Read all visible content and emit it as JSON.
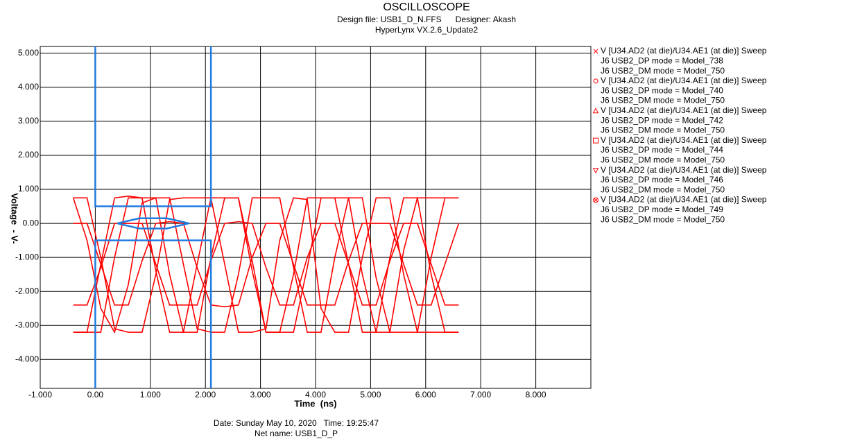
{
  "chart_data": {
    "type": "line",
    "title": "OSCILLOSCOPE",
    "subtitle": [
      "Design file: USB1_D_N.FFS      Designer: Akash",
      "HyperLynx VX.2.6_Update2"
    ],
    "footer": [
      "Date: Sunday May 10, 2020   Time: 19:25:47",
      "Net name: USB1_D_P"
    ],
    "xlabel": "Time  (ns)",
    "ylabel": "Voltage  - V-",
    "xlim": [
      -1,
      9
    ],
    "ylim": [
      -4.85,
      5.2
    ],
    "xticks": [
      {
        "value": -1,
        "label": "-1.000"
      },
      {
        "value": 0,
        "label": "0.00"
      },
      {
        "value": 1,
        "label": "1.000"
      },
      {
        "value": 2,
        "label": "2.000"
      },
      {
        "value": 3,
        "label": "3.000"
      },
      {
        "value": 4,
        "label": "4.000"
      },
      {
        "value": 5,
        "label": "5.000"
      },
      {
        "value": 6,
        "label": "6.000"
      },
      {
        "value": 7,
        "label": "7.000"
      },
      {
        "value": 8,
        "label": "8.000"
      }
    ],
    "yticks": [
      {
        "value": 5,
        "label": "5.000"
      },
      {
        "value": 4,
        "label": "4.000"
      },
      {
        "value": 3,
        "label": "3.000"
      },
      {
        "value": 2,
        "label": "2.000"
      },
      {
        "value": 1,
        "label": "1.000"
      },
      {
        "value": 0,
        "label": "0.00"
      },
      {
        "value": -1,
        "label": "-1.000"
      },
      {
        "value": -2,
        "label": "-2.000"
      },
      {
        "value": -3,
        "label": "-3.000"
      },
      {
        "value": -4,
        "label": "-4.000"
      }
    ],
    "grid": true,
    "x": [
      -0.4,
      -0.15,
      0.1,
      0.35,
      0.6,
      0.85,
      1.1,
      1.35,
      1.6,
      1.85,
      2.1,
      2.35,
      2.6,
      2.85,
      3.1,
      3.35,
      3.6,
      3.85,
      4.1,
      4.35,
      4.6,
      4.85,
      5.1,
      5.35,
      5.6,
      5.85,
      6.1,
      6.35,
      6.6
    ],
    "series": [
      {
        "name": "V [U34.AD2 (at die)/U34.AE1 (at die)] Sweep",
        "details": [
          "J6 USB2_DP mode = Model_738",
          "J6 USB2_DM mode = Model_750"
        ],
        "marker": "x",
        "color": "#ff0000",
        "values": [
          0.75,
          0.75,
          -1.0,
          -3.1,
          -3.2,
          -3.2,
          -1.5,
          0.7,
          0.75,
          0.75,
          0.75,
          -1.2,
          -3.2,
          -3.2,
          -3.1,
          -0.5,
          0.75,
          0.7,
          -2.5,
          -3.2,
          -3.2,
          -1.0,
          0.75,
          0.75,
          -1.5,
          -3.2,
          -3.2,
          -3.2,
          -3.2
        ]
      },
      {
        "name": "V [U34.AD2 (at die)/U34.AE1 (at die)] Sweep",
        "details": [
          "J6 USB2_DP mode = Model_740",
          "J6 USB2_DM mode = Model_750"
        ],
        "marker": "circle",
        "color": "#ff0000",
        "values": [
          -3.2,
          -3.2,
          -1.2,
          0.75,
          0.8,
          0.75,
          0.75,
          -1.5,
          -3.2,
          -3.2,
          -1.0,
          0.75,
          0.75,
          -1.4,
          -3.2,
          -3.2,
          -3.2,
          -1.3,
          0.75,
          0.75,
          0.75,
          -1.5,
          -3.2,
          -3.2,
          -0.8,
          0.75,
          0.75,
          0.75,
          0.75
        ]
      },
      {
        "name": "V [U34.AD2 (at die)/U34.AE1 (at die)] Sweep",
        "details": [
          "J6 USB2_DP mode = Model_742",
          "J6 USB2_DM mode = Model_750"
        ],
        "marker": "triangle",
        "color": "#ff0000",
        "values": [
          0,
          0,
          -1.2,
          -2.4,
          -2.4,
          -1.1,
          0,
          0.05,
          0,
          -1.3,
          -2.4,
          -2.45,
          -2.4,
          -1.0,
          0,
          0,
          -1.2,
          -2.4,
          -2.4,
          -2.4,
          -1.1,
          0,
          0,
          0,
          -1.2,
          -2.4,
          -2.4,
          -1.2,
          0
        ]
      },
      {
        "name": "V [U34.AD2 (at die)/U34.AE1 (at die)] Sweep",
        "details": [
          "J6 USB2_DP mode = Model_744",
          "J6 USB2_DM mode = Model_750"
        ],
        "marker": "square",
        "color": "#ff0000",
        "values": [
          -2.4,
          -2.4,
          -1.3,
          0,
          0,
          0,
          -1.2,
          -2.4,
          -2.4,
          -2.4,
          -1.1,
          0,
          0.05,
          0,
          -1.3,
          -2.4,
          -2.4,
          -1.0,
          0,
          0,
          -1.2,
          -2.4,
          -2.4,
          -1.1,
          0,
          0,
          -1.2,
          -2.4,
          -2.4
        ]
      },
      {
        "name": "V [U34.AD2 (at die)/U34.AE1 (at die)] Sweep",
        "details": [
          "J6 USB2_DP mode = Model_746",
          "J6 USB2_DM mode = Model_750"
        ],
        "marker": "triangle-down",
        "color": "#ff0000",
        "values": [
          0.75,
          -0.5,
          -2.5,
          -3.2,
          -1.8,
          0.6,
          0.75,
          0.75,
          -1.2,
          -3.1,
          -3.2,
          -3.2,
          -1.5,
          0.75,
          0.75,
          0.75,
          -1.3,
          -3.2,
          -3.2,
          -1.0,
          0.75,
          0.75,
          -1.6,
          -3.2,
          -3.2,
          -3.2,
          -1.0,
          0.75,
          0.75
        ]
      },
      {
        "name": "V [U34.AD2 (at die)/U34.AE1 (at die)] Sweep",
        "details": [
          "J6 USB2_DP mode = Model_749",
          "J6 USB2_DM mode = Model_750"
        ],
        "marker": "circle-x",
        "color": "#ff0000",
        "values": [
          -3.2,
          -3.2,
          -3.2,
          -1.0,
          0.75,
          0.75,
          -1.4,
          -3.2,
          -3.2,
          -1.2,
          0.75,
          0.75,
          0.75,
          -1.1,
          -3.2,
          -3.2,
          -1.5,
          0.75,
          0.75,
          0.75,
          -1.2,
          -3.2,
          -3.2,
          -1.0,
          0.75,
          0.75,
          -1.5,
          -3.2,
          -3.2
        ]
      }
    ],
    "mask_color": "#1e7be0",
    "mask": [
      {
        "x": [
          0,
          0,
          2.1,
          2.1
        ],
        "y": [
          5.2,
          0.5,
          0.5,
          5.2
        ]
      },
      {
        "x": [
          0,
          0,
          2.1,
          2.1
        ],
        "y": [
          -4.85,
          -0.5,
          -0.5,
          -4.85
        ]
      },
      {
        "x": [
          0.4,
          0.8,
          1.3,
          1.7,
          1.3,
          0.8,
          0.4
        ],
        "y": [
          0,
          0.15,
          0.15,
          0,
          -0.15,
          -0.15,
          0
        ]
      }
    ]
  }
}
